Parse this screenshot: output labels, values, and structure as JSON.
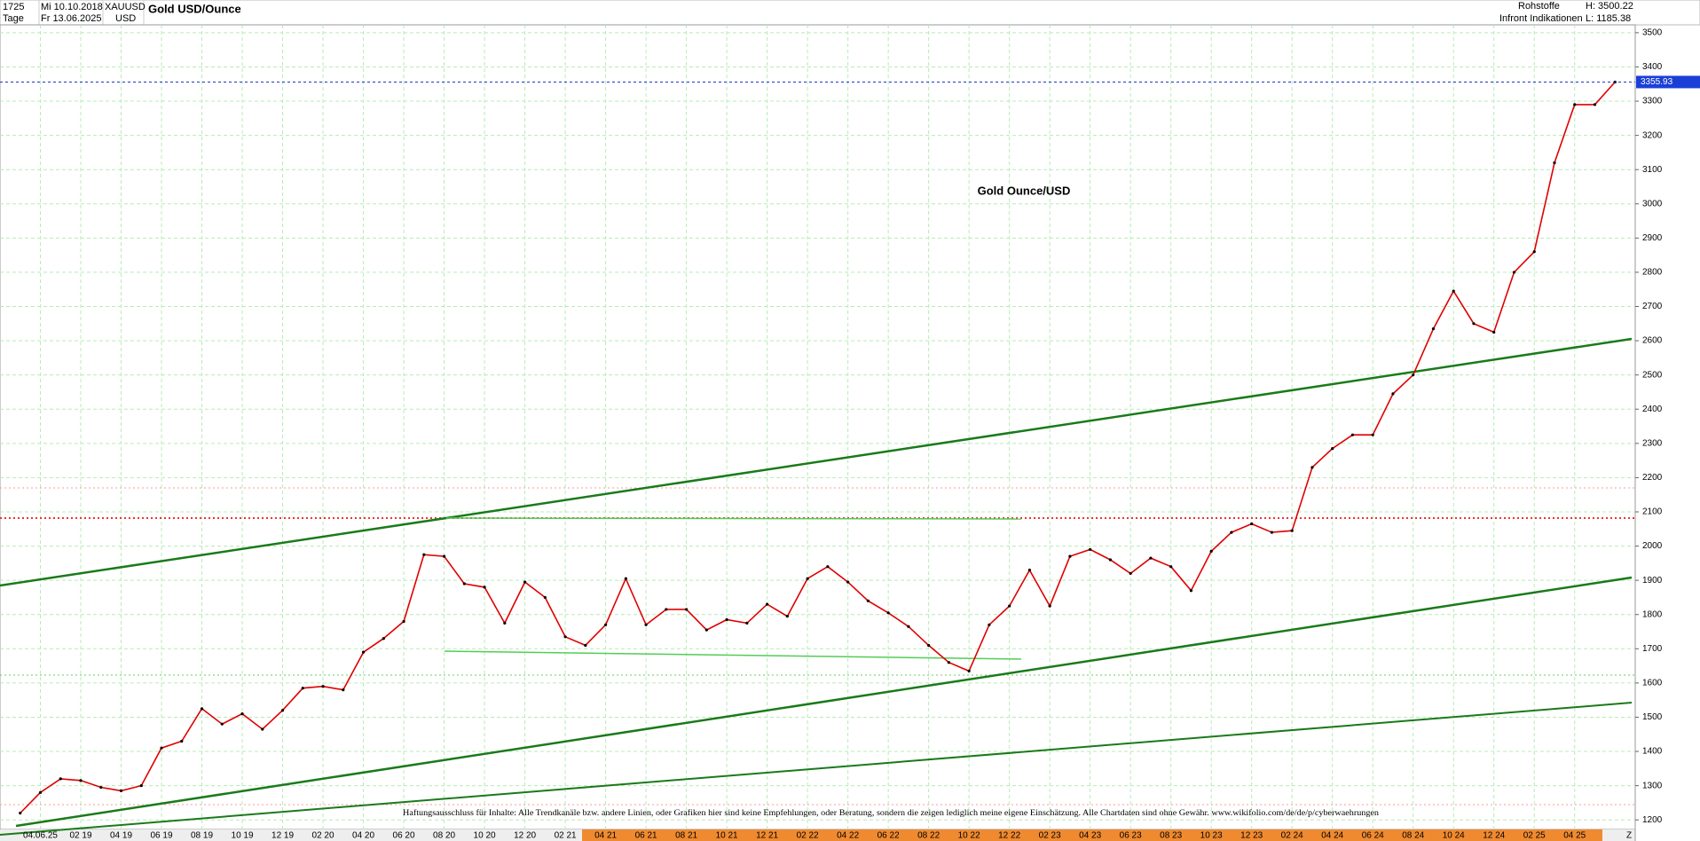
{
  "header": {
    "count": "1725",
    "start_date": "Mi 10.10.2018",
    "symbol": "XAUUSD",
    "period": "Tage",
    "end_date": "Fr 13.06.2025",
    "currency": "USD",
    "title": "Gold USD/Ounce",
    "category": "Rohstoffe",
    "high": "H: 3500.22",
    "source": "Infront Indikationen",
    "low": "L: 1185.38",
    "axis_end": "Z"
  },
  "chart_data": {
    "type": "line",
    "annotation": "Gold Ounce/USD",
    "disclaimer": "Haftungsausschluss für Inhalte: Alle Trendkanäle bzw. andere Linien, oder Grafiken hier sind keine Empfehlungen, oder Beratung, sondern die zeigen lediglich meine eigene Einschätzung. Alle Chartdaten sind ohne Gewähr.  www.wikifolio.com/de/de/p/cyberwaehrungen",
    "categories": [
      null,
      "04.06.25",
      null,
      "02 19",
      null,
      "04 19",
      null,
      "06 19",
      null,
      "08 19",
      null,
      "10 19",
      null,
      "12 19",
      null,
      "02 20",
      null,
      "04 20",
      null,
      "06 20",
      null,
      "08 20",
      null,
      "10 20",
      null,
      "12 20",
      null,
      "02 21",
      null,
      "04 21",
      null,
      "06 21",
      null,
      "08 21",
      null,
      "10 21",
      null,
      "12 21",
      null,
      "02 22",
      null,
      "04 22",
      null,
      "06 22",
      null,
      "08 22",
      null,
      "10 22",
      null,
      "12 22",
      null,
      "02 23",
      null,
      "04 23",
      null,
      "06 23",
      null,
      "08 23",
      null,
      "10 23",
      null,
      "12 23",
      null,
      "02 24",
      null,
      "04 24",
      null,
      "06 24",
      null,
      "08 24",
      null,
      "10 24",
      null,
      "12 24",
      null,
      "02 25",
      null,
      "04 25",
      null,
      null
    ],
    "values": [
      1220,
      1280,
      1320,
      1315,
      1295,
      1285,
      1300,
      1410,
      1430,
      1525,
      1480,
      1510,
      1465,
      1520,
      1585,
      1590,
      1580,
      1690,
      1730,
      1780,
      1975,
      1970,
      1890,
      1880,
      1775,
      1895,
      1850,
      1735,
      1710,
      1770,
      1905,
      1770,
      1815,
      1815,
      1755,
      1785,
      1775,
      1830,
      1795,
      1905,
      1940,
      1895,
      1840,
      1805,
      1765,
      1710,
      1660,
      1635,
      1770,
      1825,
      1930,
      1825,
      1970,
      1990,
      1960,
      1920,
      1965,
      1940,
      1870,
      1985,
      2040,
      2065,
      2040,
      2045,
      2230,
      2285,
      2325,
      2325,
      2445,
      2500,
      2635,
      2745,
      2650,
      2625,
      2800,
      2860,
      3120,
      3290,
      3290,
      3355.93
    ],
    "color": "#e00000",
    "last_value": 3355.93,
    "ylim": [
      1172,
      3523
    ],
    "yticks": [
      1200,
      1300,
      1400,
      1500,
      1600,
      1700,
      1800,
      1900,
      2000,
      2100,
      2200,
      2300,
      2400,
      2500,
      2600,
      2700,
      2800,
      2900,
      3000,
      3100,
      3200,
      3300,
      3400,
      3500
    ],
    "grid": true
  }
}
